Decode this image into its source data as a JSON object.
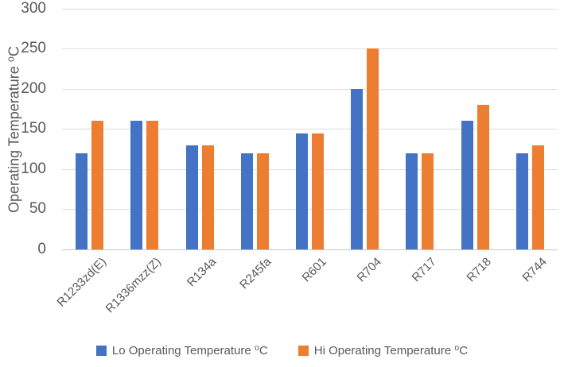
{
  "chart_data": {
    "type": "bar",
    "title": "",
    "categories": [
      "R1233zd(E)",
      "R1336mzz(Z)",
      "R134a",
      "R245fa",
      "R601",
      "R704",
      "R717",
      "R718",
      "R744"
    ],
    "series": [
      {
        "name": "Lo Operating Temperature ⁰C",
        "color": "#4472C4",
        "values": [
          120,
          160,
          130,
          120,
          145,
          200,
          120,
          160,
          120
        ]
      },
      {
        "name": "Hi Operating Temperature ⁰C",
        "color": "#ED7D31",
        "values": [
          160,
          160,
          130,
          120,
          145,
          250,
          120,
          180,
          130
        ]
      }
    ],
    "xlabel": "",
    "ylabel": "Operating Temperature ⁰C",
    "ylim": [
      0,
      300
    ],
    "yticks": [
      0,
      50,
      100,
      150,
      200,
      250,
      300
    ],
    "grid": true,
    "legend_position": "bottom",
    "colors": {
      "gridline": "#dedede",
      "axis_line": "#c9c9c9",
      "text": "#595959",
      "background": "#ffffff"
    }
  }
}
